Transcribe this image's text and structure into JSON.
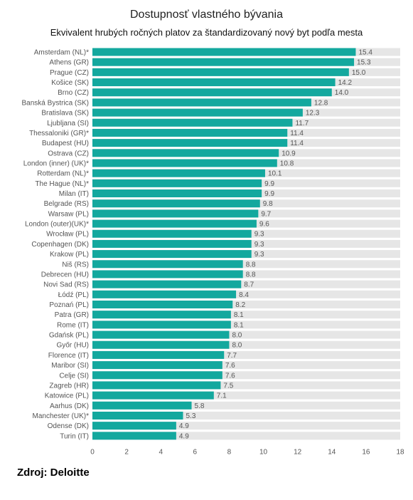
{
  "chart_data": {
    "type": "bar",
    "orientation": "horizontal",
    "title": "Dostupnosť vlastného bývania",
    "subtitle": "Ekvivalent hrubých ročných platov za štandardizovaný nový byt podľa mesta",
    "categories": [
      "Amsterdam (NL)*",
      "Athens (GR)",
      "Prague (CZ)",
      "Košice (SK)",
      "Brno (CZ)",
      "Banská Bystrica (SK)",
      "Bratislava (SK)",
      "Ljubljana (SI)",
      "Thessaloniki (GR)*",
      "Budapest (HU)",
      "Ostrava (CZ)",
      "London (inner) (UK)*",
      "Rotterdam (NL)*",
      "The Hague (NL)*",
      "Milan (IT)",
      "Belgrade (RS)",
      "Warsaw (PL)",
      "London (outer)(UK)*",
      "Wrocław (PL)",
      "Copenhagen (DK)",
      "Krakow (PL)",
      "Niš (RS)",
      "Debrecen (HU)",
      "Novi Sad (RS)",
      "Łódź (PL)",
      "Poznań (PL)",
      "Patra (GR)",
      "Rome (IT)",
      "Gdańsk (PL)",
      "Győr (HU)",
      "Florence (IT)",
      "Maribor (SI)",
      "Celje (SI)",
      "Zagreb (HR)",
      "Katowice (PL)",
      "Aarhus (DK)",
      "Manchester (UK)*",
      "Odense (DK)",
      "Turin (IT)"
    ],
    "values": [
      15.4,
      15.3,
      15.0,
      14.2,
      14.0,
      12.8,
      12.3,
      11.7,
      11.4,
      11.4,
      10.9,
      10.8,
      10.1,
      9.9,
      9.9,
      9.8,
      9.7,
      9.6,
      9.3,
      9.3,
      9.3,
      8.8,
      8.8,
      8.7,
      8.4,
      8.2,
      8.1,
      8.1,
      8.0,
      8.0,
      7.7,
      7.6,
      7.6,
      7.5,
      7.1,
      5.8,
      5.3,
      4.9,
      4.9
    ],
    "value_labels": [
      "15.4",
      "15.3",
      "15.0",
      "14.2",
      "14.0",
      "12.8",
      "12.3",
      "11.7",
      "11.4",
      "11.4",
      "10.9",
      "10.8",
      "10.1",
      "9.9",
      "9.9",
      "9.8",
      "9.7",
      "9.6",
      "9.3",
      "9.3",
      "9.3",
      "8.8",
      "8.8",
      "8.7",
      "8.4",
      "8.2",
      "8.1",
      "8.1",
      "8.0",
      "8.0",
      "7.7",
      "7.6",
      "7.6",
      "7.5",
      "7.1",
      "5.8",
      "5.3",
      "4.9",
      "4.9"
    ],
    "xlim": [
      0,
      18
    ],
    "xticks": [
      0,
      2,
      4,
      6,
      8,
      10,
      12,
      14,
      16,
      18
    ],
    "grid": false,
    "legend": "none",
    "colors": {
      "bar": "#13a89e",
      "track": "#e6e6e6"
    }
  },
  "source": "Zdroj: Deloitte"
}
